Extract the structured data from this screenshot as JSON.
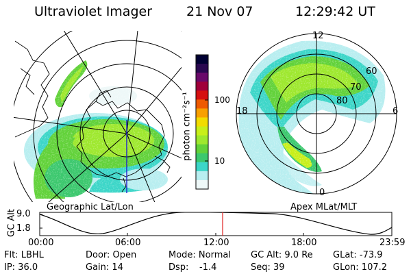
{
  "header": {
    "instrument": "Ultraviolet Imager",
    "date": "21 Nov 07",
    "time": "12:29:42 UT"
  },
  "geo_panel": {
    "label": "Geographic Lat/Lon"
  },
  "mag_panel": {
    "label": "Apex MLat/MLT",
    "mlt_labels": [
      "12",
      "18",
      "6",
      "0"
    ],
    "mlat_labels": [
      "60",
      "70",
      "80"
    ]
  },
  "colorbar": {
    "unit_label": "photon cm⁻²s⁻¹",
    "ticks": [
      "100",
      "10"
    ],
    "colors": [
      "#000033",
      "#2a0850",
      "#6a0a6a",
      "#a0003a",
      "#d61010",
      "#ee5a00",
      "#f8a000",
      "#f2dc00",
      "#c8ef1a",
      "#9ee82e",
      "#62d23a",
      "#3cc86e",
      "#3cd6c8",
      "#b8eef0",
      "#eef8f8"
    ]
  },
  "altitude_plot": {
    "ylabel": "GC Alt",
    "yticks": [
      "9.0",
      "1.8"
    ],
    "xticks": [
      "00:00",
      "06:00",
      "12:00",
      "18:00",
      "23:59"
    ]
  },
  "status": {
    "flt": "Flt: LBHL",
    "ip": "IP: 36.0",
    "door": "Door: Open",
    "gain": "Gain: 14",
    "mode": "Mode: Normal",
    "dsp_label": "Dsp:",
    "dsp_value": "-1.4",
    "gc_alt": "GC Alt: 9.0 Re",
    "seq": "Seq: 39",
    "glat": "GLat: -73.9",
    "glon": "GLon: 107.2"
  }
}
